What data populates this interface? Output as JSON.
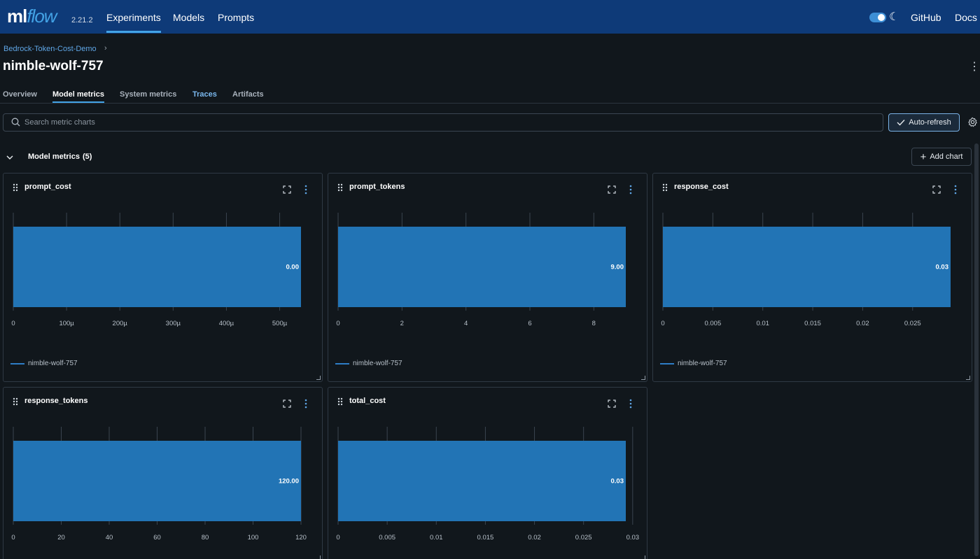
{
  "nav": {
    "logo_ml": "ml",
    "logo_flow": "flow",
    "version": "2.21.2",
    "links": [
      "Experiments",
      "Models",
      "Prompts"
    ],
    "active_link": "Experiments",
    "github": "GitHub",
    "docs": "Docs",
    "theme_toggle_on": true
  },
  "header": {
    "breadcrumb": "Bedrock-Token-Cost-Demo",
    "breadcrumb_sep": "›",
    "run_name": "nimble-wolf-757",
    "more_icon": "kebab-vertical-icon"
  },
  "tabs": [
    {
      "label": "Overview"
    },
    {
      "label": "Model metrics"
    },
    {
      "label": "System metrics"
    },
    {
      "label": "Traces"
    },
    {
      "label": "Artifacts"
    }
  ],
  "active_tab": "Model metrics",
  "search": {
    "placeholder": "Search metric charts",
    "value": ""
  },
  "toolbar": {
    "auto_refresh": "Auto-refresh",
    "add_chart": "Add chart"
  },
  "section": {
    "title": "Model metrics",
    "count": "(5)",
    "expanded": true
  },
  "legend_label": "nimble-wolf-757",
  "colors": {
    "nav_bg": "#0e3a78",
    "accent": "#43a3e6",
    "bar": "#2274b5",
    "page_bg": "#11171c"
  },
  "chart_data": [
    {
      "type": "bar",
      "orientation": "horizontal",
      "title": "prompt_cost",
      "series": [
        {
          "name": "nimble-wolf-757",
          "values": [
            0.00054
          ]
        }
      ],
      "value_label": "0.00",
      "xlim": [
        0,
        0.00054
      ],
      "ticks": [
        0,
        0.0001,
        0.0002,
        0.0003,
        0.0004,
        0.0005
      ],
      "tick_labels": [
        "0",
        "100µ",
        "200µ",
        "300µ",
        "400µ",
        "500µ"
      ],
      "grid": true,
      "legend": "bottom-left"
    },
    {
      "type": "bar",
      "orientation": "horizontal",
      "title": "prompt_tokens",
      "series": [
        {
          "name": "nimble-wolf-757",
          "values": [
            9
          ]
        }
      ],
      "value_label": "9.00",
      "xlim": [
        0,
        9
      ],
      "ticks": [
        0,
        2,
        4,
        6,
        8
      ],
      "tick_labels": [
        "0",
        "2",
        "4",
        "6",
        "8"
      ],
      "grid": true,
      "legend": "bottom-left"
    },
    {
      "type": "bar",
      "orientation": "horizontal",
      "title": "response_cost",
      "series": [
        {
          "name": "nimble-wolf-757",
          "values": [
            0.0288
          ]
        }
      ],
      "value_label": "0.03",
      "xlim": [
        0,
        0.0288
      ],
      "ticks": [
        0,
        0.005,
        0.01,
        0.015,
        0.02,
        0.025
      ],
      "tick_labels": [
        "0",
        "0.005",
        "0.01",
        "0.015",
        "0.02",
        "0.025"
      ],
      "grid": true,
      "legend": "bottom-left"
    },
    {
      "type": "bar",
      "orientation": "horizontal",
      "title": "response_tokens",
      "series": [
        {
          "name": "nimble-wolf-757",
          "values": [
            120
          ]
        }
      ],
      "value_label": "120.00",
      "xlim": [
        0,
        120
      ],
      "ticks": [
        0,
        20,
        40,
        60,
        80,
        100,
        120
      ],
      "tick_labels": [
        "0",
        "20",
        "40",
        "60",
        "80",
        "100",
        "120"
      ],
      "grid": true,
      "legend": "bottom-left"
    },
    {
      "type": "bar",
      "orientation": "horizontal",
      "title": "total_cost",
      "series": [
        {
          "name": "nimble-wolf-757",
          "values": [
            0.0293
          ]
        }
      ],
      "value_label": "0.03",
      "xlim": [
        0,
        0.0293
      ],
      "ticks": [
        0,
        0.005,
        0.01,
        0.015,
        0.02,
        0.025,
        0.03
      ],
      "tick_labels": [
        "0",
        "0.005",
        "0.01",
        "0.015",
        "0.02",
        "0.025",
        "0.03"
      ],
      "grid": true,
      "legend": "bottom-left"
    }
  ]
}
